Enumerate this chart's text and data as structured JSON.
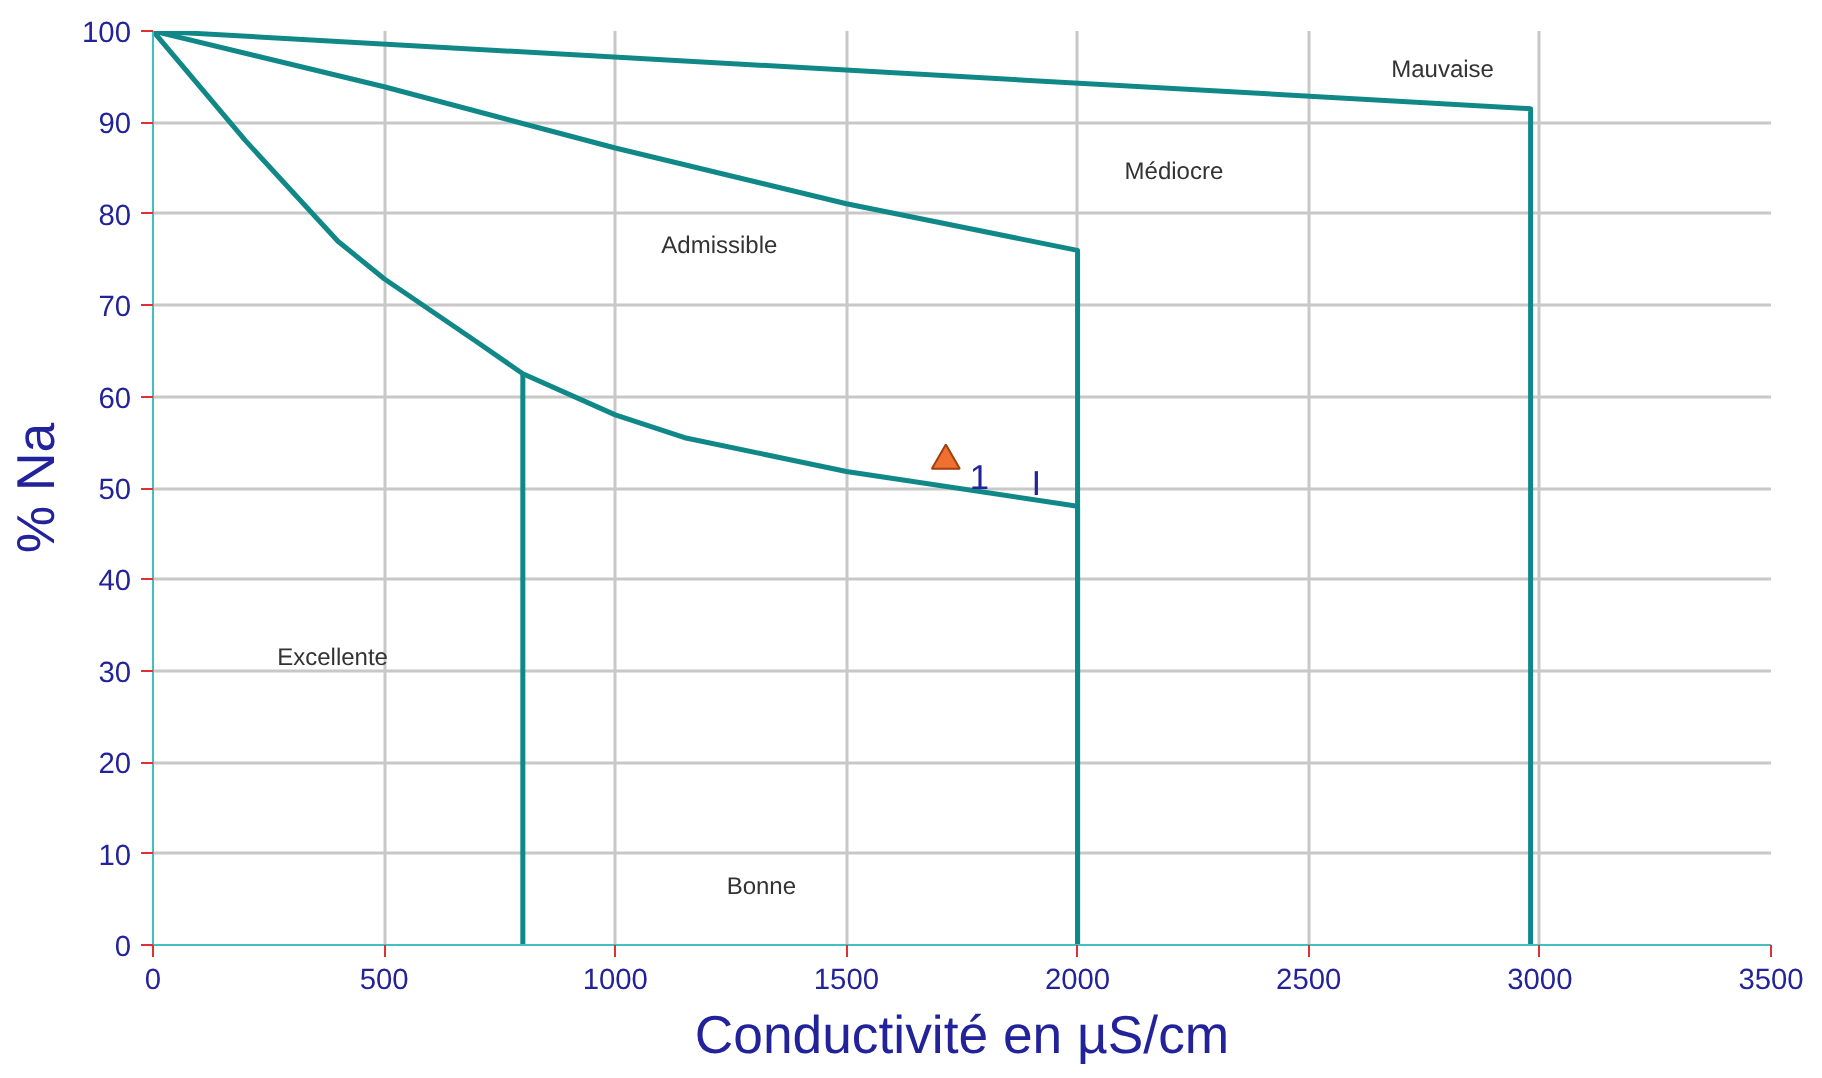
{
  "chart_data": {
    "type": "line",
    "xlabel": "Conductivité en µS/cm",
    "ylabel": "% Na",
    "xlim": [
      0,
      3500
    ],
    "ylim": [
      0,
      100
    ],
    "xticks": [
      0,
      500,
      1000,
      1500,
      2000,
      2500,
      3000,
      3500
    ],
    "yticks": [
      0,
      10,
      20,
      30,
      40,
      50,
      60,
      70,
      80,
      90,
      100
    ],
    "grid": true,
    "series": [
      {
        "color": "#118888",
        "x": [
          0,
          2980,
          2980
        ],
        "values": [
          100,
          91.5,
          0
        ]
      },
      {
        "color": "#118888",
        "x": [
          0,
          500,
          1000,
          1500,
          2000,
          2000
        ],
        "values": [
          100,
          93.9,
          87.2,
          81.1,
          76,
          0
        ]
      },
      {
        "color": "#118888",
        "x": [
          0,
          200,
          400,
          500,
          700,
          800,
          1000,
          1150,
          1500,
          2000,
          2000
        ],
        "values": [
          100,
          88,
          77,
          72.9,
          66,
          62.5,
          58,
          55.5,
          51.8,
          48,
          0
        ]
      },
      {
        "color": "#118888",
        "x": [
          800,
          800
        ],
        "values": [
          62.5,
          0
        ]
      },
      {
        "type": "scatter",
        "marker": "triangle",
        "color": "#f07030",
        "x": [
          1715
        ],
        "values": [
          53
        ]
      }
    ],
    "annotations": [
      {
        "text": "1",
        "x": 1715,
        "y": 53
      },
      "I",
      "Excellente",
      "Bonne",
      "Admissible",
      "Médiocre",
      "Mauvaise"
    ]
  }
}
